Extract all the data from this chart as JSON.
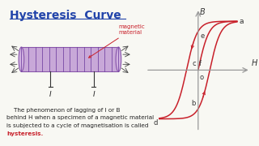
{
  "title": "Hysteresis  Curve",
  "bg_color": "#f8f8f3",
  "curve_color": "#c8202a",
  "axis_color": "#999999",
  "text_color_black": "#222222",
  "text_color_blue": "#2244aa",
  "text_color_red": "#c8202a",
  "solenoid_fill": "#c8a8d8",
  "solenoid_edge": "#8855aa",
  "coil_color": "#7040a0",
  "magnetic_material_label": "magnetic\nmaterial",
  "description_line1": "    The phenomenon of lagging of I or B",
  "description_line2": "behind H when a specimen of a magnetic material",
  "description_line3": "is subjected to a cycle of magnetisation is called",
  "description_word_red": "hysteresis.",
  "label_a": "a",
  "label_b": "b",
  "label_c": "c",
  "label_d": "d",
  "label_e": "e",
  "label_f": "f",
  "label_o": "o",
  "label_B": "B",
  "label_H": "H"
}
